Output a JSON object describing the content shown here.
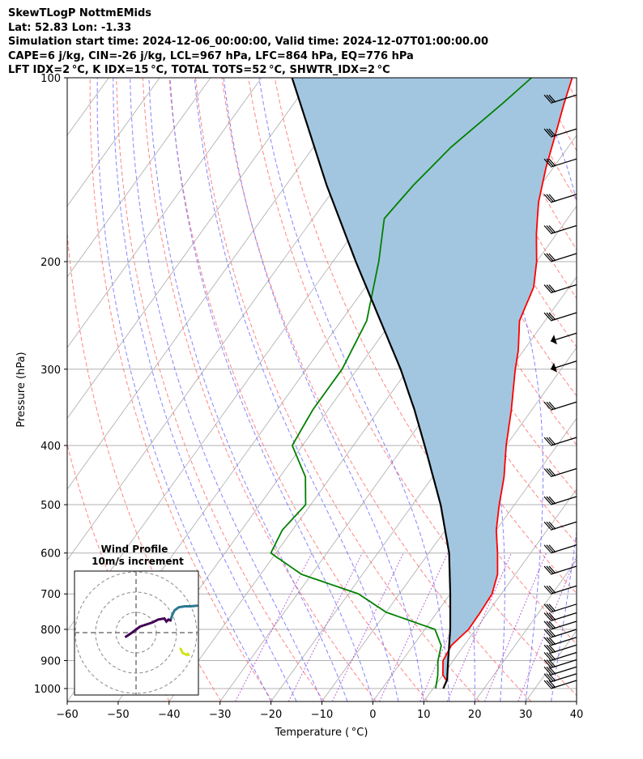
{
  "header": {
    "title": "SkewTLogP NottmEMids",
    "location": "Lat: 52.83   Lon: -1.33",
    "times": "Simulation start time: 2024-12-06_00:00:00, Valid time: 2024-12-07T01:00:00.00",
    "indices1": "CAPE=6 j/kg, CIN=-26 j/kg, LCL=967 hPa, LFC=864 hPa, EQ=776 hPa",
    "indices2": "LFT IDX=2 °C, K IDX=15 °C, TOTAL TOTS=52 °C, SHWTR_IDX=2 °C"
  },
  "chart_data": {
    "type": "skewt",
    "xlabel": "Temperature ( °C)",
    "ylabel": "Pressure (hPa)",
    "xlim": [
      -60,
      40
    ],
    "ylim": [
      1050,
      100
    ],
    "x_ticks": [
      "−60",
      "−50",
      "−40",
      "−30",
      "−20",
      "−10",
      "0",
      "10",
      "20",
      "30",
      "40"
    ],
    "y_ticks": [
      "1000",
      "900",
      "800",
      "700",
      "600",
      "500",
      "400",
      "300",
      "200",
      "100"
    ],
    "series": [
      {
        "name": "temperature",
        "color": "#ff0000",
        "points": [
          [
            1000,
            12
          ],
          [
            970,
            11.5
          ],
          [
            950,
            10
          ],
          [
            900,
            8
          ],
          [
            850,
            7.5
          ],
          [
            800,
            8.6
          ],
          [
            750,
            8.5
          ],
          [
            700,
            8.2
          ],
          [
            650,
            6.5
          ],
          [
            600,
            3.5
          ],
          [
            550,
            0
          ],
          [
            500,
            -3
          ],
          [
            450,
            -6
          ],
          [
            400,
            -10
          ],
          [
            350,
            -14
          ],
          [
            300,
            -19
          ],
          [
            280,
            -21
          ],
          [
            250,
            -25
          ],
          [
            220,
            -27
          ],
          [
            200,
            -30
          ],
          [
            180,
            -34
          ],
          [
            160,
            -38
          ],
          [
            140,
            -41.5
          ],
          [
            120,
            -45
          ],
          [
            110,
            -47
          ],
          [
            100,
            -49
          ]
        ]
      },
      {
        "name": "dewpoint",
        "color": "#008000",
        "points": [
          [
            1000,
            10.5
          ],
          [
            950,
            9
          ],
          [
            900,
            7
          ],
          [
            850,
            5.5
          ],
          [
            800,
            2
          ],
          [
            750,
            -10
          ],
          [
            700,
            -18
          ],
          [
            650,
            -32
          ],
          [
            600,
            -41
          ],
          [
            550,
            -42
          ],
          [
            500,
            -41
          ],
          [
            450,
            -45
          ],
          [
            400,
            -52
          ],
          [
            350,
            -53
          ],
          [
            300,
            -53
          ],
          [
            250,
            -55
          ],
          [
            200,
            -61
          ],
          [
            170,
            -66
          ],
          [
            150,
            -65
          ],
          [
            130,
            -63
          ],
          [
            110,
            -59
          ],
          [
            100,
            -57
          ]
        ]
      },
      {
        "name": "parcel",
        "color": "#000000",
        "points": [
          [
            1000,
            12
          ],
          [
            967,
            11.5
          ],
          [
            900,
            9
          ],
          [
            800,
            5
          ],
          [
            700,
            0
          ],
          [
            600,
            -6
          ],
          [
            500,
            -14.5
          ],
          [
            400,
            -26
          ],
          [
            350,
            -33
          ],
          [
            300,
            -41.5
          ],
          [
            250,
            -52.3
          ],
          [
            200,
            -65.5
          ],
          [
            150,
            -82
          ],
          [
            100,
            -104
          ]
        ]
      }
    ],
    "cape_color": "#a3c6e0",
    "wind_barbs": {
      "pressures": [
        1000,
        975,
        950,
        925,
        900,
        875,
        850,
        825,
        800,
        775,
        750,
        700,
        650,
        600,
        550,
        500,
        450,
        400,
        350,
        300,
        270,
        250,
        225,
        200,
        180,
        160,
        140,
        125,
        110
      ],
      "flags": [
        0,
        0,
        0,
        0,
        0,
        0,
        0,
        0,
        0,
        0,
        0,
        0,
        0,
        0,
        0,
        0,
        0,
        0,
        0,
        1,
        1,
        0,
        0,
        0,
        0,
        0,
        0,
        0,
        0
      ]
    },
    "hodograph": {
      "title": "Wind Profile",
      "subtitle": "10m/s increment",
      "segments": [
        {
          "color": "#d2e21b",
          "points": [
            [
              22,
              -8
            ],
            [
              22.5,
              -9
            ],
            [
              23,
              -10
            ],
            [
              24,
              -10.5
            ],
            [
              25,
              -11
            ],
            [
              25.5,
              -10.5
            ],
            [
              26,
              -11
            ]
          ]
        },
        {
          "color": "#2a788e",
          "points": [
            [
              17,
              6
            ],
            [
              18,
              9
            ],
            [
              19,
              11
            ],
            [
              21,
              12.5
            ],
            [
              24,
              13
            ],
            [
              27,
              13
            ],
            [
              30,
              13.3
            ]
          ]
        },
        {
          "color": "#440154",
          "points": [
            [
              -5,
              -2
            ],
            [
              -2,
              0
            ],
            [
              2,
              3
            ],
            [
              5,
              4
            ],
            [
              8,
              5
            ],
            [
              11,
              6.5
            ],
            [
              14,
              7
            ],
            [
              15,
              5.5
            ],
            [
              16,
              6.5
            ],
            [
              17,
              6
            ]
          ]
        }
      ]
    },
    "line_colors": {
      "isotherm": "#aaaaaa",
      "dry_adiabat": "#ff6666",
      "moist_adiabat": "#6666ff",
      "mixing_ratio": "#aa44cc"
    }
  }
}
